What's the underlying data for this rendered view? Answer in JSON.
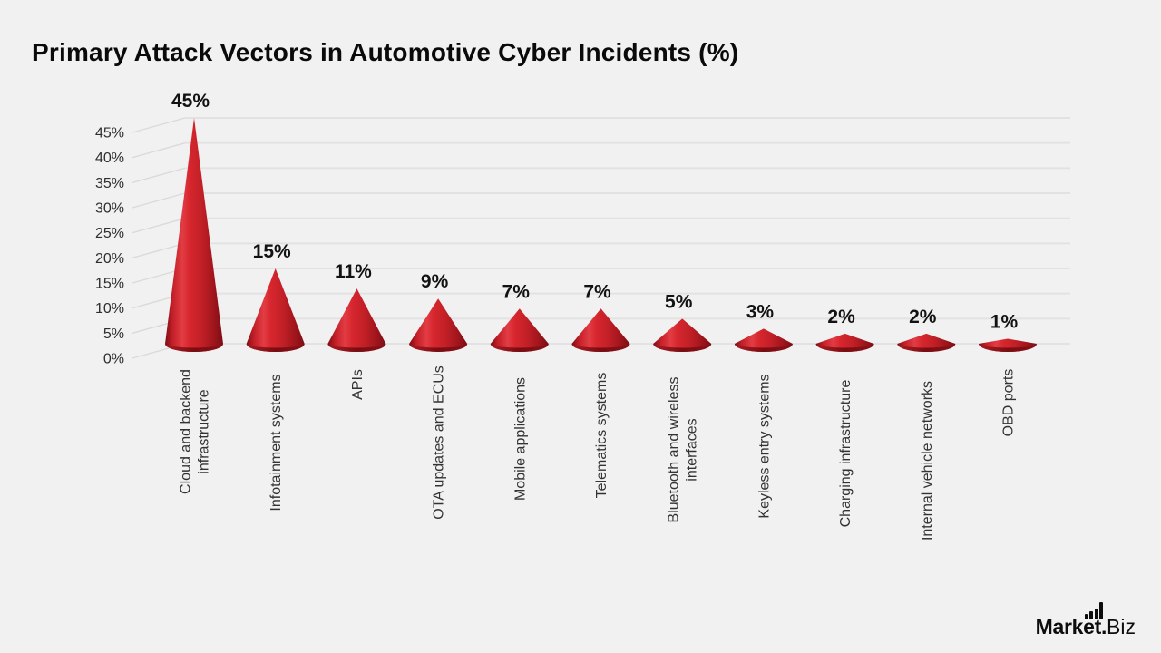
{
  "title": "Primary Attack Vectors in Automotive Cyber Incidents (%)",
  "chart_data": {
    "type": "bar",
    "variant": "3d-cone",
    "title": "Primary Attack Vectors in Automotive Cyber Incidents (%)",
    "categories": [
      [
        "Cloud and backend",
        "infrastructure"
      ],
      [
        "Infotainment systems"
      ],
      [
        "APIs"
      ],
      [
        "OTA updates and ECUs"
      ],
      [
        "Mobile applications"
      ],
      [
        "Telematics systems"
      ],
      [
        "Bluetooth and wireless",
        "interfaces"
      ],
      [
        "Keyless entry systems"
      ],
      [
        "Charging infrastructure"
      ],
      [
        "Internal vehicle networks"
      ],
      [
        "OBD ports"
      ]
    ],
    "values": [
      45,
      15,
      11,
      9,
      7,
      7,
      5,
      3,
      2,
      2,
      1
    ],
    "value_labels": [
      "45%",
      "15%",
      "11%",
      "9%",
      "7%",
      "7%",
      "5%",
      "3%",
      "2%",
      "2%",
      "1%"
    ],
    "ylabel": "",
    "xlabel": "",
    "ylim": [
      0,
      45
    ],
    "ytick_step": 5,
    "yticks": [
      "0%",
      "5%",
      "10%",
      "15%",
      "20%",
      "25%",
      "30%",
      "35%",
      "40%",
      "45%"
    ],
    "grid": true,
    "legend": false,
    "colors": {
      "background": "#f1f1f1",
      "grid_line": "#e2e2e2",
      "grid_diagonal": "#dadada",
      "axis_text": "#2e2e2e",
      "category_text": "#333333",
      "value_text": "#121212",
      "title_text": "#0a0a0a",
      "cone_dark_edge": "#7c0e14",
      "cone_mid": "#c41f28",
      "cone_highlight": "#e23c44",
      "cone_main": "#d7262e",
      "cone_base_dark": "#700b10",
      "cone_base_light": "#a81b22"
    }
  },
  "logo": {
    "market": "Market.",
    "biz": "Biz",
    "bars_icon": "bar-chart-icon"
  }
}
